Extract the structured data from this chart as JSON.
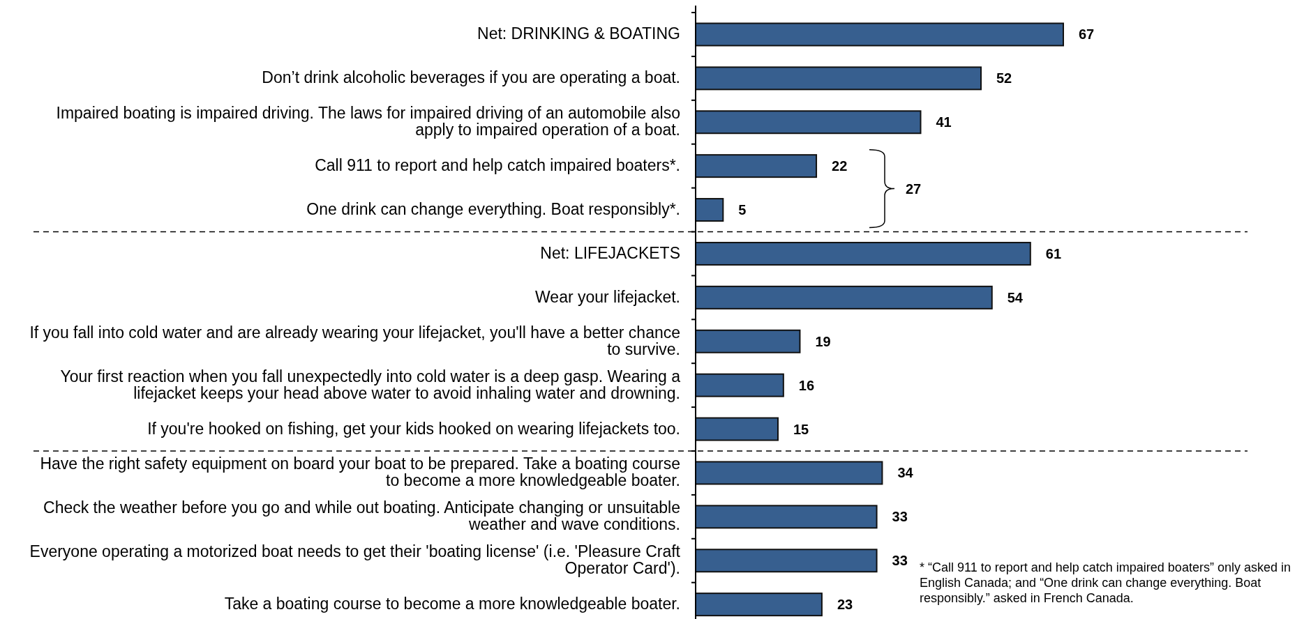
{
  "chart_data": {
    "type": "bar",
    "orientation": "horizontal",
    "data_labels": true,
    "color": "#375f8f",
    "categories": [
      "Net: DRINKING & BOATING",
      "Don’t drink alcoholic beverages if you are operating a boat.",
      "Impaired boating is impaired driving. The laws for impaired driving of an automobile also apply to impaired operation of a boat.",
      "Call 911 to report and help catch impaired boaters*.",
      "One drink can change everything. Boat responsibly*.",
      "Net: LIFEJACKETS",
      "Wear your lifejacket.",
      "If you fall into cold water and are already wearing your lifejacket, you'll have a better chance to survive.",
      "Your first reaction when you fall unexpectedly into cold water is a deep gasp. Wearing a lifejacket keeps your head above water to avoid inhaling water and drowning.",
      "If you're hooked on fishing, get your kids hooked on wearing lifejackets too.",
      "Have the right safety equipment on board your boat to be prepared. Take a boating course to become a more knowledgeable boater.",
      "Check the weather before you go and while out boating. Anticipate changing or unsuitable weather and wave conditions.",
      "Everyone operating a motorized boat needs to get their 'boating license' (i.e. 'Pleasure Craft Operator Card').",
      "Take a boating course to become a more knowledgeable boater."
    ],
    "values": [
      67,
      52,
      41,
      22,
      5,
      61,
      54,
      19,
      16,
      15,
      34,
      33,
      33,
      23
    ],
    "annotations": [
      "27",
      "* “Call 911 to report and help catch impaired boaters” only asked in English Canada; and “One drink can change everything. Boat responsibly.” asked in French Canada."
    ]
  }
}
